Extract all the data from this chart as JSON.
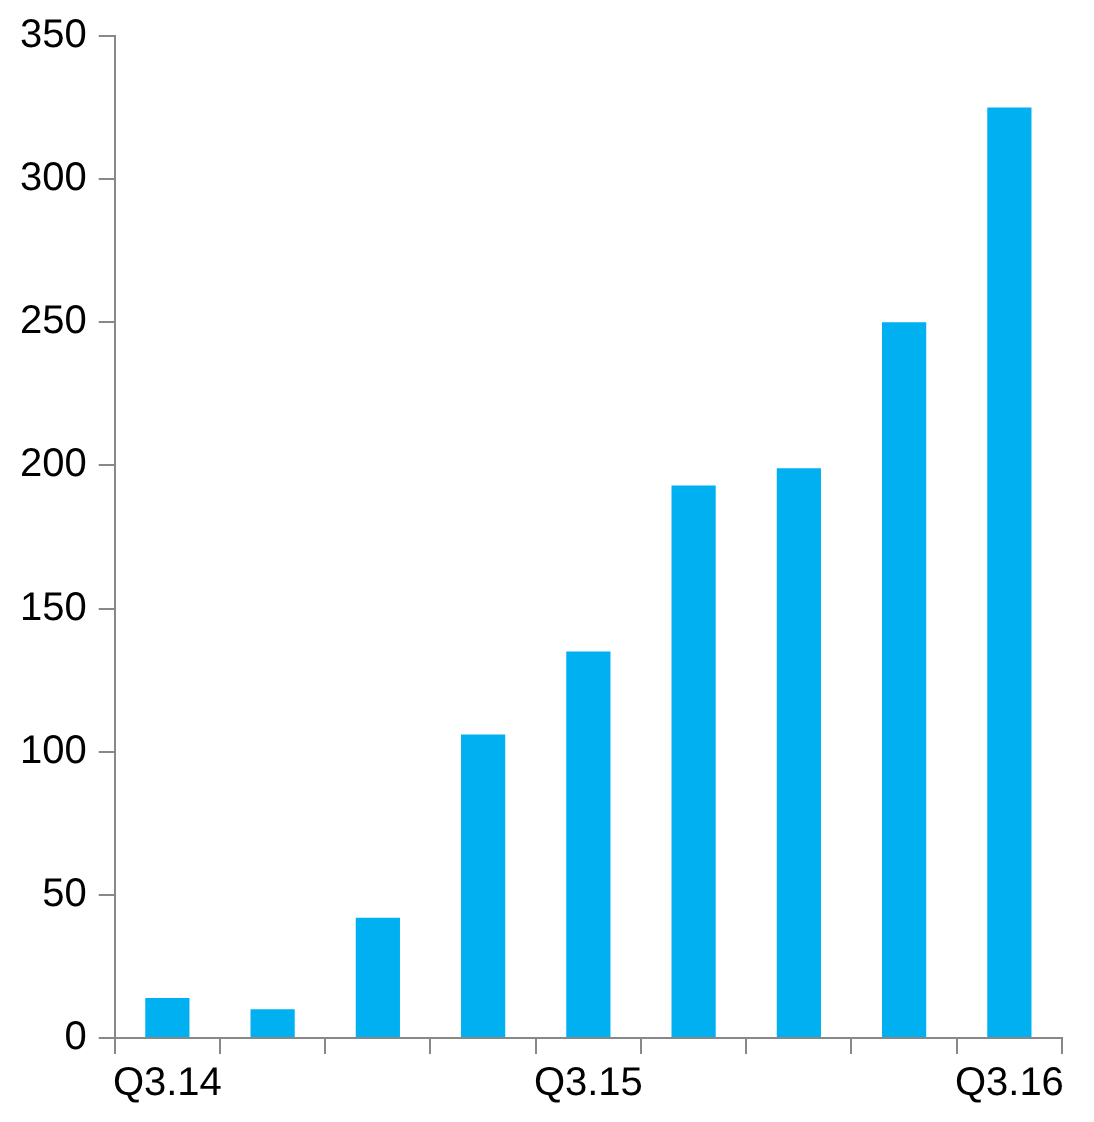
{
  "chart_data": {
    "type": "bar",
    "categories": [
      "Q3.14",
      null,
      null,
      null,
      "Q3.15",
      null,
      null,
      null,
      "Q3.16"
    ],
    "values": [
      14,
      10,
      42,
      106,
      135,
      193,
      199,
      250,
      325
    ],
    "color": "#00b0f0",
    "ylim": [
      0,
      350
    ],
    "yticks": [
      0,
      50,
      100,
      150,
      200,
      250,
      300,
      350
    ],
    "grid": false,
    "legend": false
  }
}
